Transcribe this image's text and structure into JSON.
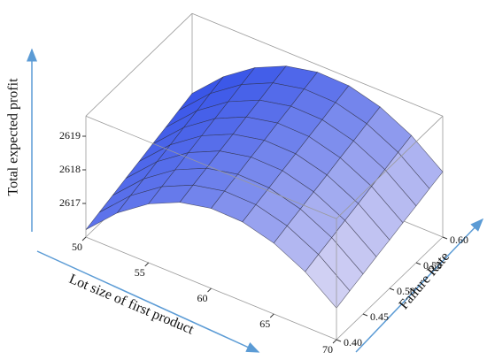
{
  "chart_data": {
    "type": "surface",
    "xlabel": "Lot size of first product",
    "ylabel": "Failure Rate",
    "zlabel": "Total expected profit",
    "x": [
      50,
      52.5,
      55,
      57.5,
      60,
      62.5,
      65,
      67.5,
      70
    ],
    "y": [
      0.4,
      0.425,
      0.45,
      0.475,
      0.5,
      0.525,
      0.55,
      0.575,
      0.6
    ],
    "z": [
      [
        2616.22,
        2617.1,
        2617.75,
        2618.18,
        2618.38,
        2618.36,
        2618.11,
        2617.64,
        2616.94
      ],
      [
        2616.35,
        2617.23,
        2617.88,
        2618.31,
        2618.51,
        2618.49,
        2618.24,
        2617.77,
        2617.07
      ],
      [
        2616.47,
        2617.35,
        2618.0,
        2618.43,
        2618.63,
        2618.61,
        2618.36,
        2617.89,
        2617.19
      ],
      [
        2616.6,
        2617.48,
        2618.13,
        2618.56,
        2618.76,
        2618.74,
        2618.49,
        2618.02,
        2617.32
      ],
      [
        2616.72,
        2617.6,
        2618.25,
        2618.68,
        2618.88,
        2618.86,
        2618.61,
        2618.14,
        2617.44
      ],
      [
        2616.85,
        2617.73,
        2618.38,
        2618.81,
        2619.01,
        2618.99,
        2618.74,
        2618.27,
        2617.57
      ],
      [
        2616.97,
        2617.85,
        2618.5,
        2618.93,
        2619.13,
        2619.11,
        2618.86,
        2618.39,
        2617.69
      ],
      [
        2617.1,
        2617.98,
        2618.63,
        2619.06,
        2619.26,
        2619.24,
        2618.99,
        2618.52,
        2617.82
      ],
      [
        2617.22,
        2618.1,
        2618.75,
        2619.18,
        2619.38,
        2619.36,
        2619.11,
        2618.64,
        2617.94
      ]
    ],
    "xlim": [
      50,
      70
    ],
    "ylim": [
      0.4,
      0.6
    ],
    "zlim": [
      2616,
      2619.6
    ],
    "xticks": [
      50,
      55,
      60,
      65,
      70
    ],
    "yticks": [
      {
        "value": 0.4,
        "label": "0.40"
      },
      0.45,
      {
        "value": 0.5,
        "label": "0.50"
      },
      0.55,
      {
        "value": 0.6,
        "label": "0.60"
      }
    ],
    "zticks": [
      2617,
      2618,
      2619
    ],
    "colormap": [
      "#f6eef6",
      "#1d3fe6"
    ],
    "mesh_color": "#2a2a3a",
    "box_color": "#9a9a9a"
  }
}
